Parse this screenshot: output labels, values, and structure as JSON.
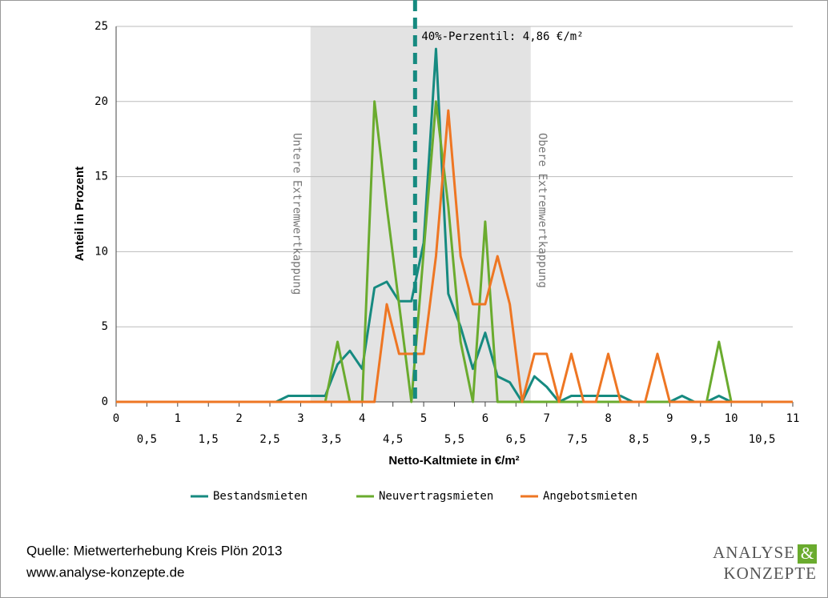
{
  "chart_data": {
    "type": "line",
    "x": [
      0,
      0.2,
      0.4,
      0.6,
      0.8,
      1,
      1.2,
      1.4,
      1.6,
      1.8,
      2,
      2.2,
      2.4,
      2.6,
      2.8,
      3,
      3.2,
      3.4,
      3.6,
      3.8,
      4,
      4.2,
      4.4,
      4.6,
      4.8,
      5,
      5.2,
      5.4,
      5.6,
      5.8,
      6,
      6.2,
      6.4,
      6.6,
      6.8,
      7,
      7.2,
      7.4,
      7.6,
      7.8,
      8,
      8.2,
      8.4,
      8.6,
      8.8,
      9,
      9.2,
      9.4,
      9.6,
      9.8,
      10,
      10.2,
      10.4,
      10.6,
      10.8,
      11
    ],
    "series": [
      {
        "name": "Bestandsmieten",
        "color": "#168a80",
        "values": [
          0,
          0,
          0,
          0,
          0,
          0,
          0,
          0,
          0,
          0,
          0,
          0,
          0,
          0,
          0.4,
          0.4,
          0.4,
          0.4,
          2.5,
          3.4,
          2.2,
          7.6,
          8.0,
          6.7,
          6.7,
          10.6,
          23.5,
          7.2,
          5.0,
          2.2,
          4.6,
          1.7,
          1.3,
          0,
          1.7,
          1.0,
          0,
          0.4,
          0.4,
          0.4,
          0.4,
          0.4,
          0,
          0,
          0,
          0,
          0.4,
          0,
          0,
          0.4,
          0,
          0,
          0,
          0,
          0,
          0
        ]
      },
      {
        "name": "Neuvertragsmieten",
        "color": "#6aab2e",
        "values": [
          0,
          0,
          0,
          0,
          0,
          0,
          0,
          0,
          0,
          0,
          0,
          0,
          0,
          0,
          0,
          0,
          0,
          0,
          4.0,
          0,
          0,
          20,
          13,
          6.5,
          0,
          10,
          20,
          13,
          4,
          0,
          12,
          0,
          0,
          0,
          0,
          0,
          0,
          0,
          0,
          0,
          0,
          0,
          0,
          0,
          0,
          0,
          0,
          0,
          0,
          4.0,
          0,
          0,
          0,
          0,
          0,
          0
        ]
      },
      {
        "name": "Angebotsmieten",
        "color": "#ee7623",
        "values": [
          0,
          0,
          0,
          0,
          0,
          0,
          0,
          0,
          0,
          0,
          0,
          0,
          0,
          0,
          0,
          0,
          0,
          0,
          0,
          0,
          0,
          0,
          6.5,
          3.2,
          3.2,
          3.2,
          9.7,
          19.4,
          9.7,
          6.5,
          6.5,
          9.7,
          6.5,
          0,
          3.2,
          3.2,
          0,
          3.2,
          0,
          0,
          3.2,
          0,
          0,
          0,
          3.2,
          0,
          0,
          0,
          0,
          0,
          0,
          0,
          0,
          0,
          0,
          0
        ]
      }
    ],
    "xlim": [
      0,
      11
    ],
    "ylim": [
      0,
      25
    ],
    "xticks": [
      0,
      1,
      2,
      3,
      4,
      5,
      6,
      7,
      8,
      9,
      10,
      11
    ],
    "xticks_minor": [
      {
        "value": 0.5,
        "label": "0,5"
      },
      {
        "value": 1.5,
        "label": "1,5"
      },
      {
        "value": 2.5,
        "label": "2,5"
      },
      {
        "value": 3.5,
        "label": "3,5"
      },
      {
        "value": 4.5,
        "label": "4,5"
      },
      {
        "value": 5.5,
        "label": "5,5"
      },
      {
        "value": 6.5,
        "label": "6,5"
      },
      {
        "value": 7.5,
        "label": "7,5"
      },
      {
        "value": 8.5,
        "label": "8,5"
      },
      {
        "value": 9.5,
        "label": "9,5"
      },
      {
        "value": 10.5,
        "label": "10,5"
      }
    ],
    "yticks": [
      0,
      5,
      10,
      15,
      20,
      25
    ],
    "grid": true,
    "xlabel": "Netto-Kaltmiete in €/m²",
    "ylabel": "Anteil in Prozent",
    "shaded_region": [
      3.16,
      6.74
    ],
    "region_labels": [
      "Untere Extremwertkappung",
      "Obere Extremwertkappung"
    ],
    "percentile": {
      "value": 4.86,
      "label": "40%-Perzentil: 4,86 €/m²",
      "color": "#168a80"
    },
    "legend": "bottom"
  },
  "footer": {
    "source": "Quelle: Mietwerterhebung Kreis Plön 2013",
    "url": "www.analyse-konzepte.de"
  },
  "logo": {
    "line1": "ANALYSE",
    "amp": "&",
    "line2": "KONZEPTE"
  }
}
